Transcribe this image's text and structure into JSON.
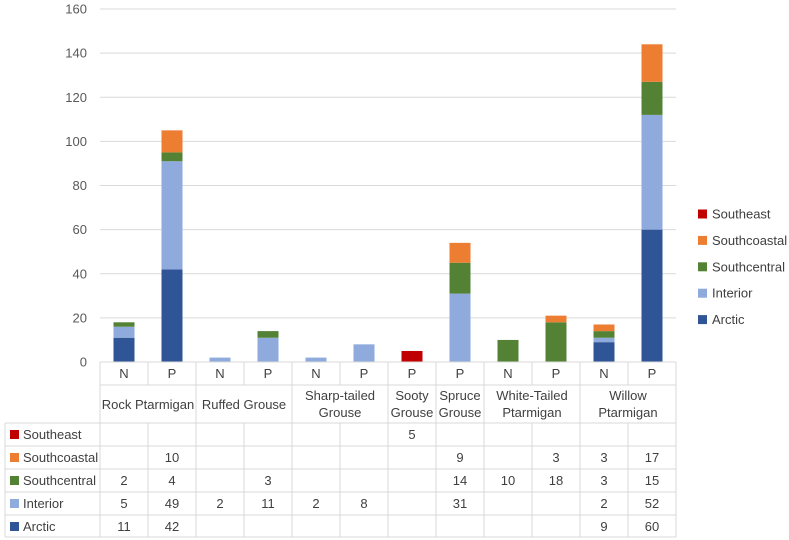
{
  "chart_data": {
    "type": "bar",
    "stacked": true,
    "groups": [
      "Rock Ptarmigan",
      "Ruffed Grouse",
      "Sharp-tailed Grouse",
      "Sooty Grouse",
      "Spruce Grouse",
      "White-Tailed Ptarmigan",
      "Willow Ptarmigan"
    ],
    "group_lines": [
      [
        "Rock Ptarmigan"
      ],
      [
        "Ruffed Grouse"
      ],
      [
        "Sharp-tailed",
        "Grouse"
      ],
      [
        "Sooty",
        "Grouse"
      ],
      [
        "Spruce",
        "Grouse"
      ],
      [
        "White-Tailed",
        "Ptarmigan"
      ],
      [
        "Willow",
        "Ptarmigan"
      ]
    ],
    "bars": [
      {
        "group": 0,
        "label": "N"
      },
      {
        "group": 0,
        "label": "P"
      },
      {
        "group": 1,
        "label": "N"
      },
      {
        "group": 1,
        "label": "P"
      },
      {
        "group": 2,
        "label": "N"
      },
      {
        "group": 2,
        "label": "P"
      },
      {
        "group": 3,
        "label": "P"
      },
      {
        "group": 4,
        "label": "P"
      },
      {
        "group": 5,
        "label": "N"
      },
      {
        "group": 5,
        "label": "P"
      },
      {
        "group": 6,
        "label": "N"
      },
      {
        "group": 6,
        "label": "P"
      }
    ],
    "series": [
      {
        "name": "Arctic",
        "color": "#2f5597",
        "values": [
          11,
          42,
          null,
          null,
          null,
          null,
          null,
          null,
          null,
          null,
          9,
          60
        ]
      },
      {
        "name": "Interior",
        "color": "#8faadc",
        "values": [
          5,
          49,
          2,
          11,
          2,
          8,
          null,
          31,
          null,
          null,
          2,
          52
        ]
      },
      {
        "name": "Southcentral",
        "color": "#548235",
        "values": [
          2,
          4,
          null,
          3,
          null,
          null,
          null,
          14,
          10,
          18,
          3,
          15
        ]
      },
      {
        "name": "Southcoastal",
        "color": "#ed7d31",
        "values": [
          null,
          10,
          null,
          null,
          null,
          null,
          null,
          9,
          null,
          3,
          3,
          17
        ]
      },
      {
        "name": "Southeast",
        "color": "#c00000",
        "values": [
          null,
          null,
          null,
          null,
          null,
          null,
          5,
          null,
          null,
          null,
          null,
          null
        ]
      }
    ],
    "y_ticks": [
      0,
      20,
      40,
      60,
      80,
      100,
      120,
      140,
      160
    ],
    "ylim": [
      0,
      160
    ],
    "grid": true,
    "legend": "right",
    "data_table": true
  }
}
